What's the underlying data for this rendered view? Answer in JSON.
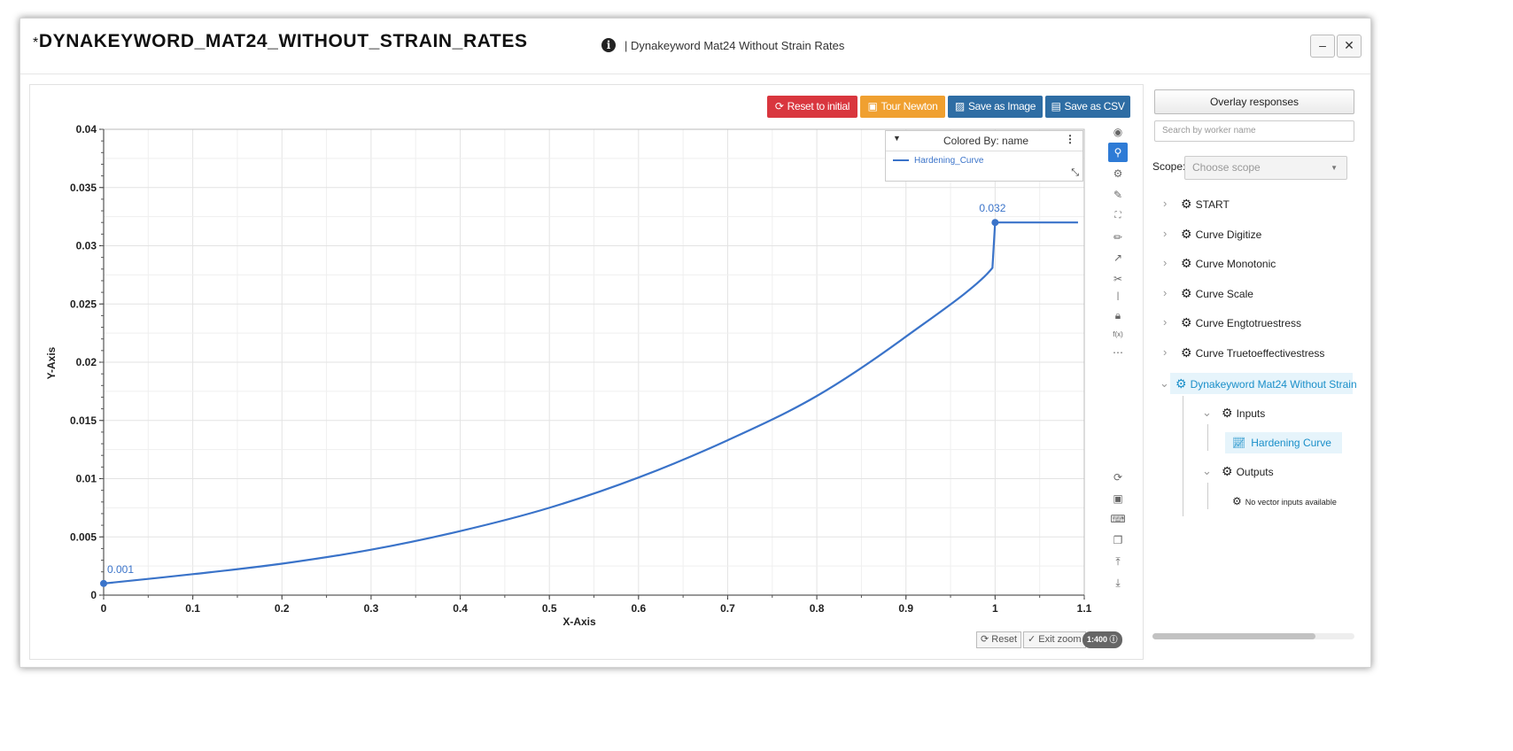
{
  "window": {
    "star": "*",
    "title": "DYNAKEYWORD_MAT24_WITHOUT_STRAIN_RATES",
    "subtitle": "| Dynakeyword Mat24 Without Strain Rates",
    "minimize_label": "–",
    "close_label": "✕"
  },
  "toolbar": {
    "reset_label": "Reset to initial",
    "tour_label": "Tour Newton",
    "save_image_label": "Save as Image",
    "save_csv_label": "Save as CSV",
    "colors": {
      "reset": "#d9363e",
      "tour": "#f0a030",
      "save": "#2e6da4"
    }
  },
  "legend": {
    "header": "Colored By: name",
    "item": "Hardening_Curve"
  },
  "zoom_controls": {
    "reset_label": "Reset",
    "exit_zoom_label": "Exit zoom",
    "ratio_label": "1:400"
  },
  "right_panel": {
    "overlay_label": "Overlay responses",
    "search_placeholder": "Search by worker name",
    "scope_label": "Scope:",
    "scope_placeholder": "Choose scope",
    "tree": [
      {
        "label": "START",
        "icon": "gear-icon"
      },
      {
        "label": "Curve Digitize",
        "icon": "gear-icon"
      },
      {
        "label": "Curve Monotonic",
        "icon": "gear-icon"
      },
      {
        "label": "Curve Scale",
        "icon": "gear-icon"
      },
      {
        "label": "Curve Engtotruestress",
        "icon": "gear-icon"
      },
      {
        "label": "Curve Truetoeffectivestress",
        "icon": "gear-icon"
      }
    ],
    "active_worker": "Dynakeyword Mat24 Without Strain",
    "inputs_label": "Inputs",
    "hardening_label": "Hardening Curve",
    "outputs_label": "Outputs",
    "no_vector_label": "No vector inputs available",
    "accent": "#1a8fc9"
  },
  "chart_data": {
    "type": "line",
    "xlabel": "X-Axis",
    "ylabel": "Y-Axis",
    "xlim": [
      0,
      1.1
    ],
    "ylim": [
      0,
      0.04
    ],
    "xticks": [
      "0",
      "0.1",
      "0.2",
      "0.3",
      "0.4",
      "0.5",
      "0.6",
      "0.7",
      "0.8",
      "0.9",
      "1",
      "1.1"
    ],
    "yticks": [
      "0",
      "0.005",
      "0.01",
      "0.015",
      "0.02",
      "0.025",
      "0.03",
      "0.035",
      "0.04"
    ],
    "grid": true,
    "legend_position": "top-right",
    "series": [
      {
        "name": "Hardening_Curve",
        "color": "#3a73c9",
        "x": [
          0,
          0.1,
          0.2,
          0.3,
          0.4,
          0.5,
          0.6,
          0.7,
          0.8,
          0.9,
          0.997,
          1.0,
          1.093
        ],
        "y": [
          0.001,
          0.0018,
          0.0027,
          0.0039,
          0.0055,
          0.0075,
          0.0101,
          0.0133,
          0.0171,
          0.0222,
          0.0281,
          0.032,
          0.032
        ]
      }
    ],
    "annotations": [
      {
        "x": 0,
        "y": 0.001,
        "label": "0.001"
      },
      {
        "x": 1.0,
        "y": 0.032,
        "label": "0.032"
      }
    ]
  }
}
